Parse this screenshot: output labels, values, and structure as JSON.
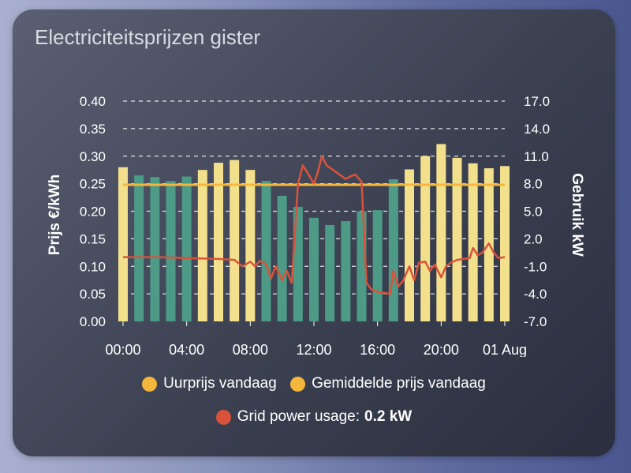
{
  "card": {
    "title": "Electriciteitsprijzen gister"
  },
  "colors": {
    "price_high": "#f2e08c",
    "price_low": "#4d9a86",
    "average": "#f5b73b",
    "grid": "#d9533a",
    "text": "#ffffff",
    "gridline": "#ffffff"
  },
  "legend": {
    "items": [
      {
        "label": "Uurprijs vandaag",
        "color": "#f5b73b"
      },
      {
        "label": "Gemiddelde prijs vandaag",
        "color": "#f5b73b"
      }
    ],
    "grid": {
      "label": "Grid power usage:",
      "value": "0.2 kW",
      "color": "#d9533a"
    }
  },
  "chart_data": {
    "type": "bar",
    "title": "",
    "xlabel": "",
    "ylabel": "Prijs €/kWh",
    "y2label": "Gebruik kW",
    "ylim": [
      0,
      0.4
    ],
    "y2lim": [
      -7,
      17
    ],
    "yticks": [
      "0.00",
      "0.05",
      "0.10",
      "0.15",
      "0.20",
      "0.25",
      "0.30",
      "0.35",
      "0.40"
    ],
    "y2ticks": [
      "-7.0",
      "-4.0",
      "-1.0",
      "2.0",
      "5.0",
      "8.0",
      "11.0",
      "14.0",
      "17.0"
    ],
    "xticks": [
      "00:00",
      "04:00",
      "08:00",
      "12:00",
      "16:00",
      "20:00",
      "01 Aug"
    ],
    "xrange_hours": [
      0,
      24
    ],
    "grid": true,
    "series": [
      {
        "name": "Uurprijs vandaag",
        "type": "bar",
        "hours": [
          0,
          1,
          2,
          3,
          4,
          5,
          6,
          7,
          8,
          9,
          10,
          11,
          12,
          13,
          14,
          15,
          16,
          17,
          18,
          19,
          20,
          21,
          22,
          23,
          24
        ],
        "values": [
          0.28,
          0.265,
          0.262,
          0.255,
          0.263,
          0.275,
          0.288,
          0.293,
          0.275,
          0.255,
          0.228,
          0.208,
          0.188,
          0.175,
          0.182,
          0.2,
          0.202,
          0.258,
          0.276,
          0.3,
          0.322,
          0.297,
          0.287,
          0.278,
          0.282
        ],
        "levels": [
          "high",
          "low",
          "low",
          "low",
          "low",
          "high",
          "high",
          "high",
          "high",
          "low",
          "low",
          "low",
          "low",
          "low",
          "low",
          "low",
          "low",
          "low",
          "high",
          "high",
          "high",
          "high",
          "high",
          "high",
          "high"
        ]
      },
      {
        "name": "Gemiddelde prijs vandaag",
        "type": "line",
        "value": 0.248
      },
      {
        "name": "Grid power usage",
        "type": "line",
        "axis": "y2",
        "points": [
          [
            0,
            0.0
          ],
          [
            2,
            0.0
          ],
          [
            4,
            -0.1
          ],
          [
            6,
            -0.2
          ],
          [
            7,
            -0.3
          ],
          [
            7.5,
            -1.0
          ],
          [
            8,
            -0.5
          ],
          [
            8.3,
            -1.0
          ],
          [
            8.6,
            -0.4
          ],
          [
            9,
            -0.8
          ],
          [
            9.3,
            -2.3
          ],
          [
            9.6,
            -1.0
          ],
          [
            10,
            -2.5
          ],
          [
            10.3,
            -1.5
          ],
          [
            10.6,
            -2.8
          ],
          [
            11,
            8.0
          ],
          [
            11.3,
            10.0
          ],
          [
            11.6,
            9.2
          ],
          [
            12,
            8.0
          ],
          [
            12.2,
            9.0
          ],
          [
            12.5,
            11.0
          ],
          [
            12.8,
            10.0
          ],
          [
            13.2,
            9.5
          ],
          [
            13.6,
            9.0
          ],
          [
            14,
            8.5
          ],
          [
            14.3,
            8.8
          ],
          [
            14.6,
            9.0
          ],
          [
            15,
            8.2
          ],
          [
            15.3,
            -2.8
          ],
          [
            15.6,
            -3.5
          ],
          [
            16,
            -3.8
          ],
          [
            16.4,
            -3.9
          ],
          [
            16.8,
            -4.0
          ],
          [
            17,
            -1.5
          ],
          [
            17.3,
            -3.2
          ],
          [
            17.6,
            -2.6
          ],
          [
            18,
            -1.0
          ],
          [
            18.3,
            -2.5
          ],
          [
            18.6,
            -0.6
          ],
          [
            19,
            -0.5
          ],
          [
            19.3,
            -1.5
          ],
          [
            19.6,
            -0.8
          ],
          [
            20,
            -2.2
          ],
          [
            20.3,
            -1.0
          ],
          [
            20.6,
            -0.6
          ],
          [
            21,
            -0.3
          ],
          [
            21.4,
            -0.2
          ],
          [
            21.8,
            -0.1
          ],
          [
            22,
            1.0
          ],
          [
            22.3,
            0.2
          ],
          [
            22.6,
            0.5
          ],
          [
            23,
            1.5
          ],
          [
            23.3,
            0.5
          ],
          [
            23.6,
            -0.1
          ],
          [
            24,
            0.0
          ]
        ]
      }
    ]
  }
}
